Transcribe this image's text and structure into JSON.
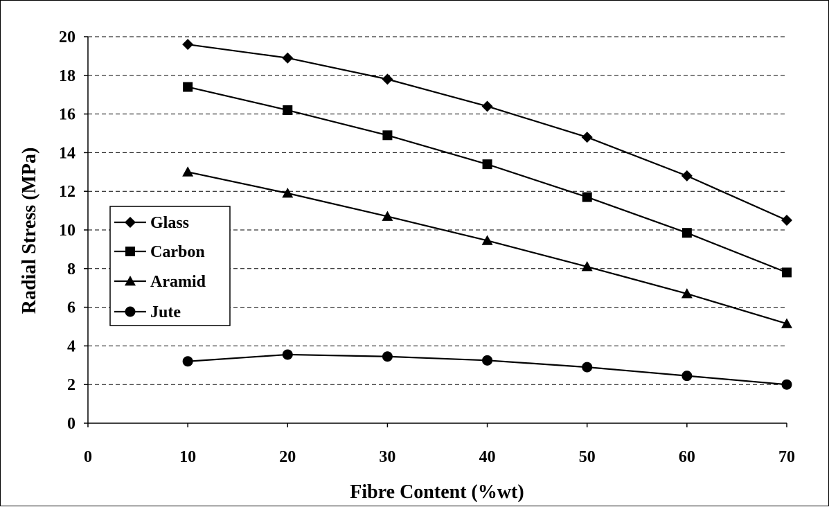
{
  "chart_data": {
    "type": "line",
    "title": "",
    "xlabel": "Fibre Content (%wt)",
    "ylabel": "Radial Stress (MPa)",
    "xlim": [
      0,
      70
    ],
    "ylim": [
      0,
      20
    ],
    "x_ticks": [
      "0",
      "10",
      "20",
      "30",
      "40",
      "50",
      "60",
      "70"
    ],
    "y_ticks": [
      "0",
      "2",
      "4",
      "6",
      "8",
      "10",
      "12",
      "14",
      "16",
      "18",
      "20"
    ],
    "grid": "horizontal-dashed",
    "legend_position": "left",
    "x": [
      10,
      20,
      30,
      40,
      50,
      60,
      70
    ],
    "series": [
      {
        "name": "Glass",
        "marker": "diamond",
        "values": [
          19.6,
          18.9,
          17.8,
          16.4,
          14.8,
          12.8,
          10.5
        ]
      },
      {
        "name": "Carbon",
        "marker": "square",
        "values": [
          17.4,
          16.2,
          14.9,
          13.4,
          11.7,
          9.85,
          7.8
        ]
      },
      {
        "name": "Aramid",
        "marker": "triangle",
        "values": [
          13.0,
          11.9,
          10.7,
          9.45,
          8.1,
          6.7,
          5.15
        ]
      },
      {
        "name": "Jute",
        "marker": "circle",
        "values": [
          3.2,
          3.55,
          3.45,
          3.25,
          2.9,
          2.45,
          2.0
        ]
      }
    ],
    "colors": {
      "line": "#000000",
      "grid": "#000000",
      "background": "#ffffff"
    }
  }
}
